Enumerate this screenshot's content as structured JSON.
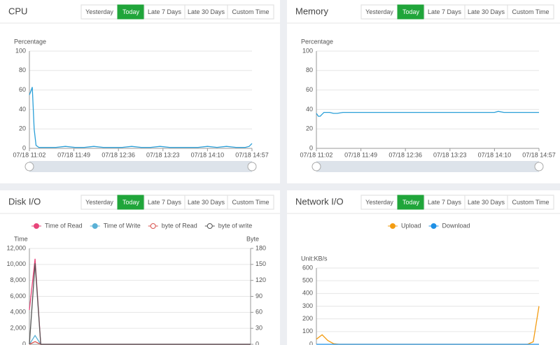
{
  "buttons": [
    "Yesterday",
    "Today",
    "Late 7 Days",
    "Late 30 Days",
    "Custom Time"
  ],
  "active_button": 1,
  "chart_data": [
    {
      "type": "line",
      "title": "CPU",
      "y_label": "Percentage",
      "color": "#2a9fd8",
      "ylim": [
        0,
        100
      ],
      "yticks": [
        0,
        20,
        40,
        60,
        80,
        100
      ],
      "xlim": [
        662,
        897
      ],
      "xticks": [
        {
          "value": 662,
          "label": "07/18 11:02"
        },
        {
          "value": 709,
          "label": "07/18 11:49"
        },
        {
          "value": 756,
          "label": "07/18 12:36"
        },
        {
          "value": 803,
          "label": "07/18 13:23"
        },
        {
          "value": 850,
          "label": "07/18 14:10"
        },
        {
          "value": 897,
          "label": "07/18 14:57"
        }
      ],
      "x": [
        662,
        664,
        665,
        667,
        669,
        672,
        680,
        690,
        700,
        710,
        720,
        730,
        740,
        750,
        760,
        770,
        780,
        790,
        800,
        810,
        820,
        830,
        840,
        850,
        860,
        870,
        880,
        890,
        894,
        897
      ],
      "values": [
        55,
        60,
        63,
        20,
        3,
        1,
        1,
        1,
        2,
        1,
        1,
        2,
        1,
        1,
        1,
        2,
        1,
        1,
        2,
        1,
        1,
        1,
        1,
        2,
        1,
        2,
        1,
        1,
        2,
        5
      ]
    },
    {
      "type": "line",
      "title": "Memory",
      "y_label": "Percentage",
      "color": "#2a9fd8",
      "ylim": [
        0,
        100
      ],
      "yticks": [
        0,
        20,
        40,
        60,
        80,
        100
      ],
      "xlim": [
        662,
        897
      ],
      "xticks": [
        {
          "value": 662,
          "label": "07/18 11:02"
        },
        {
          "value": 709,
          "label": "07/18 11:49"
        },
        {
          "value": 756,
          "label": "07/18 12:36"
        },
        {
          "value": 803,
          "label": "07/18 13:23"
        },
        {
          "value": 850,
          "label": "07/18 14:10"
        },
        {
          "value": 897,
          "label": "07/18 14:57"
        }
      ],
      "x": [
        662,
        664,
        666,
        670,
        676,
        680,
        684,
        690,
        720,
        760,
        800,
        840,
        850,
        854,
        860,
        880,
        897
      ],
      "values": [
        36,
        33,
        33,
        37,
        37,
        36,
        36,
        37,
        37,
        37,
        37,
        37,
        37,
        38,
        37,
        37,
        37
      ]
    },
    {
      "type": "line",
      "title": "Disk I/O",
      "y_label": "Time",
      "y2_label": "Byte",
      "ylim": [
        0,
        12000
      ],
      "yticks": [
        0,
        {
          "value": 2000,
          "label": "2,000"
        },
        {
          "value": 4000,
          "label": "4,000"
        },
        {
          "value": 6000,
          "label": "6,000"
        },
        {
          "value": 8000,
          "label": "8,000"
        },
        {
          "value": 10000,
          "label": "10,000"
        },
        {
          "value": 12000,
          "label": "12,000"
        }
      ],
      "y2lim": [
        0,
        180
      ],
      "y2ticks": [
        0,
        30,
        60,
        90,
        120,
        150,
        180
      ],
      "series": [
        {
          "name": "Time of Read",
          "color": "#e8457a",
          "marker": "filled",
          "values": [
            4300,
            10700,
            0,
            0,
            0,
            0,
            0,
            0,
            0,
            0,
            0,
            0,
            0,
            0,
            0,
            0,
            0,
            0,
            0,
            0,
            0,
            0,
            0,
            0,
            0,
            0,
            0,
            0,
            0,
            0,
            0,
            0,
            0,
            0,
            0,
            0,
            0,
            0,
            0,
            0
          ]
        },
        {
          "name": "Time of Write",
          "color": "#5ab1d6",
          "marker": "filled",
          "values": [
            0,
            1100,
            0,
            0,
            0,
            0,
            0,
            0,
            0,
            0,
            0,
            0,
            0,
            0,
            0,
            0,
            0,
            0,
            0,
            0,
            0,
            0,
            0,
            0,
            0,
            0,
            0,
            0,
            0,
            0,
            0,
            0,
            0,
            0,
            0,
            0,
            0,
            0,
            0,
            0
          ]
        },
        {
          "name": "byte of Read",
          "color": "#d9534f",
          "marker": "hollow",
          "axis": "y2",
          "values": [
            0,
            5,
            0,
            0,
            0,
            0,
            0,
            0,
            0,
            0,
            0,
            0,
            0,
            0,
            0,
            0,
            0,
            0,
            0,
            0,
            0,
            0,
            0,
            0,
            0,
            0,
            0,
            0,
            0,
            0,
            0,
            0,
            0,
            0,
            0,
            0,
            0,
            0,
            0,
            0
          ]
        },
        {
          "name": "byte of write",
          "color": "#555555",
          "marker": "hollow",
          "axis": "y2",
          "values": [
            0,
            152,
            0,
            0,
            0,
            0,
            0,
            0,
            0,
            0,
            0,
            0,
            0,
            0,
            0,
            0,
            0,
            0,
            0,
            0,
            0,
            0,
            0,
            0,
            0,
            0,
            0,
            0,
            0,
            0,
            0,
            0,
            0,
            0,
            0,
            0,
            0,
            0,
            0,
            0
          ]
        }
      ]
    },
    {
      "type": "line",
      "title": "Network I/O",
      "y_label": "Unit:KB/s",
      "ylim": [
        0,
        600
      ],
      "yticks": [
        0,
        100,
        200,
        300,
        400,
        500,
        600
      ],
      "series": [
        {
          "name": "Upload",
          "color": "#f39c12",
          "marker": "filled",
          "values": [
            40,
            75,
            30,
            5,
            0,
            0,
            0,
            0,
            0,
            0,
            0,
            0,
            0,
            0,
            0,
            0,
            0,
            0,
            0,
            0,
            0,
            0,
            0,
            0,
            0,
            0,
            0,
            0,
            0,
            0,
            0,
            0,
            0,
            0,
            0,
            0,
            0,
            0,
            20,
            300
          ]
        },
        {
          "name": "Download",
          "color": "#1e90e6",
          "marker": "filled",
          "values": [
            0,
            0,
            0,
            0,
            0,
            0,
            0,
            0,
            0,
            0,
            0,
            0,
            0,
            0,
            0,
            0,
            0,
            0,
            0,
            0,
            0,
            0,
            0,
            0,
            0,
            0,
            0,
            0,
            0,
            0,
            0,
            0,
            0,
            0,
            0,
            0,
            0,
            0,
            0,
            0
          ]
        }
      ]
    }
  ]
}
